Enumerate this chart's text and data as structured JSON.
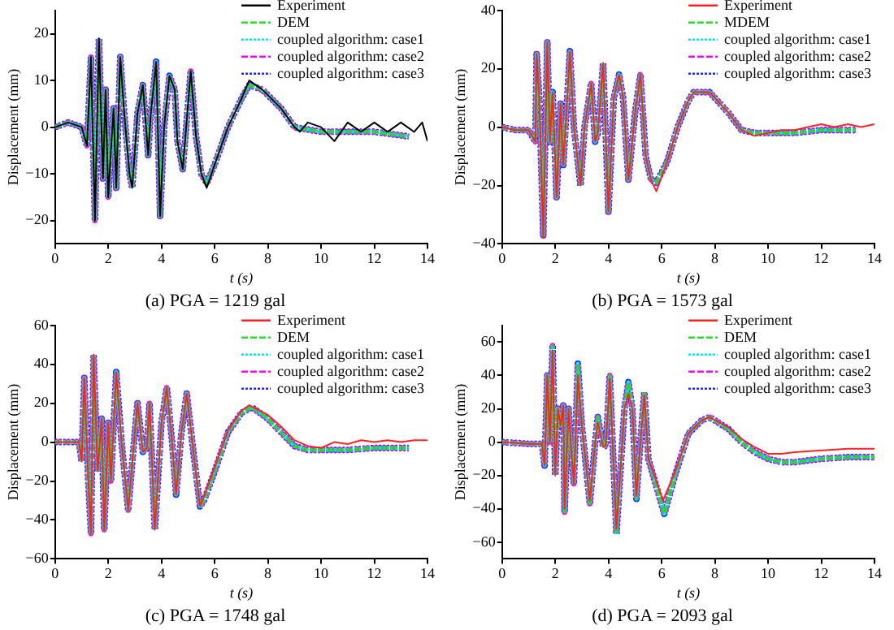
{
  "chart_data": [
    {
      "type": "line",
      "title": "(a) PGA = 1219 gal",
      "xlabel": "t (s)",
      "ylabel": "Displacement (mm)",
      "xlim": [
        0,
        14
      ],
      "xticks": [
        0,
        2,
        4,
        6,
        8,
        10,
        12,
        14
      ],
      "ylim": [
        -25,
        25
      ],
      "yticks": [
        -20,
        -10,
        0,
        10,
        20
      ],
      "grid": false,
      "legend": "top right",
      "marker": "none",
      "x": [
        0,
        0.5,
        1.0,
        1.2,
        1.35,
        1.5,
        1.65,
        1.8,
        1.9,
        2.0,
        2.1,
        2.2,
        2.3,
        2.45,
        2.6,
        2.8,
        2.9,
        3.1,
        3.3,
        3.5,
        3.6,
        3.8,
        3.95,
        4.1,
        4.3,
        4.5,
        4.6,
        4.8,
        5.1,
        5.3,
        5.5,
        5.7,
        6.0,
        6.5,
        7.0,
        7.3,
        7.8,
        8.5,
        9.0,
        10,
        11,
        12,
        13.3
      ],
      "series": [
        {
          "name": "Experiment",
          "color": "#000000",
          "line_style": "solid",
          "x": [
            0,
            0.5,
            1.0,
            1.2,
            1.35,
            1.5,
            1.65,
            1.8,
            1.9,
            2.0,
            2.1,
            2.2,
            2.3,
            2.45,
            2.6,
            2.8,
            2.9,
            3.1,
            3.3,
            3.5,
            3.6,
            3.8,
            3.95,
            4.1,
            4.3,
            4.5,
            4.6,
            4.8,
            5.1,
            5.3,
            5.5,
            5.7,
            6.0,
            6.5,
            7.0,
            7.3,
            7.8,
            8.5,
            9.0,
            9.2,
            9.5,
            10,
            10.5,
            11,
            11.5,
            12,
            12.5,
            13,
            13.5,
            13.8,
            14
          ],
          "values": [
            0,
            1,
            0,
            -4,
            15,
            -20,
            19,
            -11,
            8,
            -15,
            -5,
            4,
            -13,
            15,
            3,
            -10,
            -13,
            3,
            9,
            -6,
            3,
            14,
            -19,
            0,
            11,
            8,
            -3,
            -9,
            12,
            -2,
            -10,
            -13,
            -8,
            0,
            6,
            10,
            8,
            4,
            0,
            -1,
            1,
            0,
            -3,
            1,
            -1,
            1,
            -1,
            1,
            -1,
            1,
            -3
          ]
        },
        {
          "name": "DEM",
          "color": "#22dd22",
          "line_style": "dashed",
          "values": [
            0,
            1,
            0,
            -4,
            15,
            -20,
            19,
            -11,
            8,
            -15,
            -5,
            4,
            -13,
            15,
            3,
            -10,
            -13,
            3,
            9,
            -6,
            3,
            14,
            -19,
            0,
            11,
            8,
            -3,
            -9,
            12,
            -2,
            -10,
            -12,
            -8,
            0,
            6,
            9,
            8,
            4,
            0,
            -1,
            -1,
            -1,
            -2
          ]
        },
        {
          "name": "coupled algorithm: case1",
          "color": "#00e5ee",
          "line_style": "dotted",
          "values": [
            0,
            1,
            0,
            -4,
            15,
            -20,
            19,
            -11,
            8,
            -15,
            -5,
            4,
            -13,
            15,
            3,
            -10,
            -13,
            3,
            9,
            -6,
            3,
            14,
            -19,
            0,
            11,
            8,
            -3,
            -9,
            12,
            -2,
            -10,
            -12,
            -8,
            0,
            6,
            9,
            8,
            4,
            0,
            -1,
            -1,
            -1,
            -2
          ]
        },
        {
          "name": "coupled algorithm: case2",
          "color": "#ff00ff",
          "line_style": "dashed",
          "values": [
            0,
            1,
            0,
            -4,
            15,
            -20,
            19,
            -11,
            8,
            -15,
            -5,
            4,
            -13,
            15,
            3,
            -10,
            -13,
            3,
            9,
            -6,
            3,
            14,
            -19,
            0,
            11,
            8,
            -3,
            -9,
            12,
            -2,
            -10,
            -12,
            -8,
            0,
            6,
            9,
            8,
            4,
            0,
            -1,
            -1,
            -1,
            -2
          ]
        },
        {
          "name": "coupled algorithm: case3",
          "color": "#2222ff",
          "line_style": "dotted",
          "values": [
            0,
            1,
            0,
            -4,
            15,
            -20,
            19,
            -11,
            8,
            -15,
            -5,
            4,
            -13,
            15,
            3,
            -10,
            -13,
            3,
            9,
            -6,
            3,
            14,
            -19,
            0,
            11,
            8,
            -3,
            -9,
            12,
            -2,
            -10,
            -12,
            -8,
            0,
            6,
            9,
            8,
            4,
            0,
            -1,
            -1,
            -1,
            -2
          ]
        }
      ]
    },
    {
      "type": "line",
      "title": "(b) PGA = 1573 gal",
      "xlabel": "t (s)",
      "ylabel": "Displacement (mm)",
      "xlim": [
        0,
        14
      ],
      "xticks": [
        0,
        2,
        4,
        6,
        8,
        10,
        12,
        14
      ],
      "ylim": [
        -40,
        40
      ],
      "yticks": [
        -40,
        -20,
        0,
        20,
        40
      ],
      "grid": false,
      "legend": "top right",
      "marker": "none",
      "x": [
        0,
        0.5,
        1.0,
        1.25,
        1.3,
        1.4,
        1.55,
        1.7,
        1.8,
        1.9,
        2.05,
        2.2,
        2.3,
        2.4,
        2.55,
        2.7,
        2.95,
        3.1,
        3.35,
        3.5,
        3.6,
        3.8,
        4.0,
        4.2,
        4.4,
        4.55,
        4.75,
        5.0,
        5.2,
        5.4,
        5.6,
        5.8,
        6.2,
        6.6,
        7.0,
        7.2,
        7.8,
        8.5,
        9.0,
        9.5,
        10,
        11,
        12,
        13.3
      ],
      "series": [
        {
          "name": "Experiment",
          "color": "#ff2222",
          "line_style": "solid",
          "x": [
            0,
            0.5,
            1.0,
            1.25,
            1.3,
            1.4,
            1.55,
            1.7,
            1.8,
            1.9,
            2.05,
            2.2,
            2.3,
            2.4,
            2.55,
            2.7,
            2.95,
            3.1,
            3.35,
            3.5,
            3.6,
            3.8,
            4.0,
            4.2,
            4.4,
            4.55,
            4.75,
            5.0,
            5.2,
            5.4,
            5.6,
            5.8,
            6.2,
            6.6,
            7.0,
            7.2,
            7.8,
            8.5,
            9.0,
            9.5,
            10,
            10.5,
            11,
            11.5,
            12,
            12.5,
            13,
            13.5,
            14
          ],
          "values": [
            0,
            -1,
            -1,
            -5,
            25,
            10,
            -38,
            29,
            -5,
            12,
            -24,
            8,
            -13,
            2,
            26,
            0,
            -20,
            0,
            15,
            -5,
            -2,
            22,
            -29,
            10,
            18,
            10,
            -18,
            5,
            18,
            -10,
            -18,
            -22,
            -12,
            0,
            9,
            12,
            12,
            5,
            -1,
            -3,
            -2,
            -1,
            -1,
            0,
            1,
            0,
            1,
            0,
            1
          ]
        },
        {
          "name": "MDEM",
          "color": "#22dd22",
          "line_style": "dashed",
          "values": [
            0,
            -1,
            -1,
            -5,
            25,
            10,
            -37,
            29,
            -5,
            12,
            -24,
            8,
            -13,
            2,
            26,
            0,
            -20,
            0,
            15,
            -5,
            -2,
            22,
            -29,
            10,
            18,
            10,
            -18,
            5,
            18,
            -10,
            -18,
            -19,
            -12,
            0,
            9,
            12,
            12,
            5,
            -1,
            -2,
            -2,
            -2,
            -1,
            -1
          ]
        },
        {
          "name": "coupled algorithm: case1",
          "color": "#00e5ee",
          "line_style": "dotted",
          "values": [
            0,
            -1,
            -1,
            -5,
            25,
            10,
            -37,
            29,
            -5,
            12,
            -24,
            8,
            -13,
            2,
            26,
            0,
            -20,
            0,
            15,
            -5,
            -2,
            22,
            -29,
            10,
            18,
            10,
            -18,
            5,
            18,
            -10,
            -18,
            -19,
            -12,
            0,
            9,
            12,
            12,
            5,
            -1,
            -2,
            -2,
            -2,
            -1,
            -1
          ]
        },
        {
          "name": "coupled algorithm: case2",
          "color": "#ff00ff",
          "line_style": "dashed",
          "values": [
            0,
            -1,
            -1,
            -5,
            25,
            10,
            -37,
            29,
            -5,
            12,
            -24,
            8,
            -13,
            2,
            26,
            0,
            -20,
            0,
            15,
            -5,
            -2,
            22,
            -29,
            10,
            18,
            10,
            -18,
            5,
            18,
            -10,
            -18,
            -19,
            -12,
            0,
            9,
            12,
            12,
            5,
            -1,
            -2,
            -2,
            -2,
            -1,
            -1
          ]
        },
        {
          "name": "coupled algorithm: case3",
          "color": "#2222ff",
          "line_style": "dotted",
          "values": [
            0,
            -1,
            -1,
            -5,
            25,
            10,
            -37,
            29,
            -5,
            12,
            -24,
            8,
            -13,
            2,
            26,
            0,
            -20,
            0,
            15,
            -5,
            -2,
            22,
            -29,
            10,
            18,
            10,
            -18,
            5,
            18,
            -10,
            -18,
            -19,
            -12,
            0,
            9,
            12,
            12,
            5,
            -1,
            -2,
            -2,
            -2,
            -1,
            -1
          ]
        }
      ]
    },
    {
      "type": "line",
      "title": "(c) PGA = 1748 gal",
      "xlabel": "t (s)",
      "ylabel": "Displacement (mm)",
      "xlim": [
        0,
        14
      ],
      "xticks": [
        0,
        2,
        4,
        6,
        8,
        10,
        12,
        14
      ],
      "ylim": [
        -60,
        60
      ],
      "yticks": [
        -60,
        -40,
        -20,
        0,
        20,
        40,
        60
      ],
      "grid": false,
      "legend": "top right",
      "marker": "none",
      "x": [
        0,
        0.5,
        0.9,
        1.0,
        1.1,
        1.25,
        1.35,
        1.45,
        1.6,
        1.75,
        1.85,
        2.0,
        2.1,
        2.3,
        2.5,
        2.75,
        3.0,
        3.1,
        3.3,
        3.45,
        3.55,
        3.75,
        4.0,
        4.2,
        4.4,
        4.55,
        4.75,
        4.95,
        5.2,
        5.45,
        5.6,
        6.0,
        6.5,
        7.0,
        7.4,
        8.0,
        8.5,
        9.0,
        9.5,
        10,
        11,
        12,
        13.3
      ],
      "series": [
        {
          "name": "Experiment",
          "color": "#ff2222",
          "line_style": "solid",
          "x": [
            0,
            0.5,
            0.9,
            1.0,
            1.1,
            1.25,
            1.35,
            1.45,
            1.6,
            1.75,
            1.85,
            2.0,
            2.1,
            2.3,
            2.5,
            2.75,
            3.0,
            3.1,
            3.3,
            3.45,
            3.55,
            3.75,
            4.0,
            4.2,
            4.4,
            4.55,
            4.75,
            4.95,
            5.2,
            5.45,
            5.6,
            6.0,
            6.5,
            7.0,
            7.3,
            8.0,
            8.5,
            9.0,
            9.5,
            10,
            10.5,
            11,
            11.5,
            12,
            12.5,
            13,
            13.5,
            14
          ],
          "values": [
            0,
            0,
            0,
            -10,
            33,
            -20,
            -47,
            45,
            -15,
            12,
            -45,
            10,
            -20,
            36,
            0,
            -35,
            5,
            20,
            -5,
            -3,
            20,
            -45,
            10,
            28,
            0,
            -27,
            5,
            25,
            -5,
            -33,
            -28,
            -13,
            6,
            16,
            19,
            14,
            8,
            1,
            -2,
            -3,
            0,
            -1,
            1,
            0,
            1,
            0,
            1,
            1
          ]
        },
        {
          "name": "DEM",
          "color": "#22dd22",
          "line_style": "dashed",
          "values": [
            0,
            0,
            0,
            -10,
            33,
            -20,
            -47,
            45,
            -15,
            12,
            -45,
            10,
            -20,
            36,
            0,
            -35,
            5,
            20,
            -5,
            -3,
            20,
            -45,
            10,
            28,
            0,
            -27,
            5,
            25,
            -5,
            -33,
            -30,
            -15,
            5,
            15,
            18,
            12,
            5,
            -2,
            -4,
            -4,
            -4,
            -3,
            -3
          ]
        },
        {
          "name": "coupled algorithm: case1",
          "color": "#00e5ee",
          "line_style": "dotted",
          "values": [
            0,
            0,
            0,
            -10,
            33,
            -20,
            -47,
            45,
            -15,
            12,
            -45,
            10,
            -20,
            36,
            0,
            -35,
            5,
            20,
            -5,
            -3,
            20,
            -45,
            10,
            28,
            0,
            -27,
            5,
            25,
            -5,
            -33,
            -30,
            -15,
            5,
            15,
            18,
            12,
            5,
            -2,
            -4,
            -4,
            -4,
            -3,
            -3
          ]
        },
        {
          "name": "coupled algorithm: case2",
          "color": "#ff00ff",
          "line_style": "dashed",
          "values": [
            0,
            0,
            0,
            -10,
            33,
            -20,
            -47,
            45,
            -15,
            12,
            -45,
            10,
            -20,
            36,
            0,
            -35,
            5,
            20,
            -5,
            -3,
            20,
            -45,
            10,
            28,
            0,
            -27,
            5,
            25,
            -5,
            -33,
            -30,
            -15,
            5,
            15,
            18,
            12,
            5,
            -2,
            -4,
            -4,
            -4,
            -3,
            -3
          ]
        },
        {
          "name": "coupled algorithm: case3",
          "color": "#2222ff",
          "line_style": "dotted",
          "values": [
            0,
            0,
            0,
            -10,
            33,
            -20,
            -47,
            45,
            -15,
            12,
            -45,
            10,
            -20,
            36,
            0,
            -35,
            5,
            20,
            -5,
            -3,
            20,
            -45,
            10,
            28,
            0,
            -27,
            5,
            25,
            -5,
            -33,
            -30,
            -15,
            5,
            15,
            18,
            12,
            5,
            -2,
            -4,
            -4,
            -4,
            -3,
            -3
          ]
        }
      ]
    },
    {
      "type": "line",
      "title": "(d) PGA = 2093 gal",
      "xlabel": "t (s)",
      "ylabel": "Displacement (mm)",
      "xlim": [
        0,
        14
      ],
      "xticks": [
        0,
        2,
        4,
        6,
        8,
        10,
        12,
        14
      ],
      "ylim": [
        -70,
        70
      ],
      "yticks": [
        -60,
        -40,
        -20,
        0,
        20,
        40,
        60
      ],
      "grid": false,
      "legend": "top right",
      "marker": "none",
      "x": [
        0,
        1.0,
        1.5,
        1.6,
        1.7,
        1.8,
        1.9,
        2.0,
        2.1,
        2.2,
        2.3,
        2.35,
        2.5,
        2.6,
        2.7,
        2.85,
        3.0,
        3.3,
        3.5,
        3.6,
        3.8,
        3.9,
        4.05,
        4.3,
        4.5,
        4.6,
        4.75,
        4.9,
        5.05,
        5.2,
        5.35,
        5.5,
        6.1,
        6.5,
        7.0,
        7.5,
        7.8,
        8.5,
        9.0,
        9.5,
        10,
        10.5,
        11,
        12,
        13,
        14
      ],
      "series": [
        {
          "name": "Experiment",
          "color": "#ff2222",
          "line_style": "solid",
          "x": [
            0,
            1.0,
            1.5,
            1.6,
            1.7,
            1.8,
            1.9,
            2.0,
            2.1,
            2.2,
            2.3,
            2.35,
            2.5,
            2.6,
            2.7,
            2.85,
            3.0,
            3.3,
            3.5,
            3.6,
            3.8,
            3.9,
            4.05,
            4.3,
            4.5,
            4.6,
            4.75,
            4.9,
            5.05,
            5.2,
            5.35,
            5.5,
            6.05,
            6.5,
            7.0,
            7.5,
            7.8,
            8.5,
            9.0,
            9.5,
            10,
            10.5,
            11,
            12,
            13,
            14
          ],
          "values": [
            0,
            -1,
            -1,
            -14,
            40,
            0,
            55,
            -20,
            20,
            10,
            22,
            -40,
            20,
            -5,
            -25,
            40,
            10,
            -35,
            0,
            12,
            -3,
            -2,
            38,
            -52,
            -5,
            20,
            29,
            20,
            -32,
            0,
            28,
            -10,
            -35,
            -18,
            5,
            13,
            15,
            9,
            2,
            -3,
            -7,
            -7,
            -6,
            -5,
            -4,
            -4
          ]
        },
        {
          "name": "DEM",
          "color": "#22dd22",
          "line_style": "dashed",
          "values": [
            0,
            -1,
            -1,
            -14,
            40,
            0,
            58,
            -20,
            20,
            10,
            22,
            -42,
            20,
            -5,
            -25,
            47,
            10,
            -37,
            0,
            15,
            -3,
            -2,
            40,
            -55,
            -5,
            20,
            36,
            20,
            -34,
            0,
            30,
            -10,
            -43,
            -20,
            5,
            13,
            15,
            8,
            0,
            -6,
            -10,
            -12,
            -12,
            -10,
            -9,
            -9
          ]
        },
        {
          "name": "coupled algorithm: case1",
          "color": "#00e5ee",
          "line_style": "dotted",
          "values": [
            0,
            -1,
            -1,
            -14,
            40,
            0,
            58,
            -20,
            20,
            10,
            22,
            -42,
            20,
            -5,
            -25,
            47,
            10,
            -37,
            0,
            15,
            -3,
            -2,
            40,
            -55,
            -5,
            20,
            36,
            20,
            -34,
            0,
            30,
            -10,
            -43,
            -20,
            5,
            13,
            15,
            8,
            0,
            -6,
            -10,
            -12,
            -12,
            -10,
            -9,
            -9
          ]
        },
        {
          "name": "coupled algorithm: case2",
          "color": "#ff00ff",
          "line_style": "dashed",
          "values": [
            0,
            -1,
            -1,
            -14,
            40,
            0,
            58,
            -20,
            20,
            10,
            22,
            -42,
            20,
            -5,
            -25,
            47,
            10,
            -37,
            0,
            15,
            -3,
            -2,
            40,
            -55,
            -5,
            20,
            36,
            20,
            -34,
            0,
            30,
            -10,
            -43,
            -20,
            5,
            13,
            15,
            8,
            0,
            -6,
            -10,
            -12,
            -12,
            -10,
            -9,
            -9
          ]
        },
        {
          "name": "coupled algorithm: case3",
          "color": "#2222ff",
          "line_style": "dotted",
          "values": [
            0,
            -1,
            -1,
            -14,
            40,
            0,
            58,
            -20,
            20,
            10,
            22,
            -42,
            20,
            -5,
            -25,
            47,
            10,
            -37,
            0,
            15,
            -3,
            -2,
            40,
            -55,
            -5,
            20,
            36,
            20,
            -34,
            0,
            30,
            -10,
            -43,
            -20,
            5,
            13,
            15,
            8,
            0,
            -6,
            -10,
            -12,
            -12,
            -10,
            -9,
            -9
          ]
        }
      ]
    }
  ]
}
